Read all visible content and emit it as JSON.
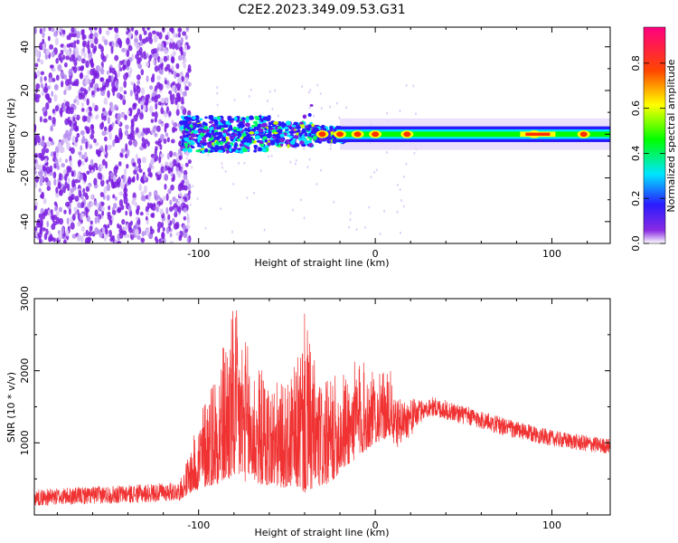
{
  "figure": {
    "title": "C2E2.2023.349.09.53.G31"
  },
  "colorbar": {
    "label": "Normalized spectral amplitude",
    "ticks": [
      "0.0",
      "0.2",
      "0.4",
      "0.6",
      "0.8"
    ],
    "range": [
      0,
      0.96
    ]
  },
  "chart_data": [
    {
      "type": "heatmap",
      "xlabel": "Height of straight line (km)",
      "ylabel": "Frequency (Hz)",
      "xlim": [
        -193,
        133
      ],
      "ylim": [
        -50,
        49
      ],
      "xticks": [
        -100,
        0,
        100
      ],
      "xtick_labels": [
        "-100",
        "0",
        "100"
      ],
      "yticks": [
        -40,
        -20,
        0,
        20,
        40
      ],
      "ytick_labels": [
        "-40",
        "-20",
        "0",
        "20",
        "40"
      ],
      "grid": false,
      "colormap": "rainbow",
      "features": {
        "noise_region_x": [
          -193,
          -107
        ],
        "signal_line_frequency": 0,
        "signal_bandwidth_hz": 8,
        "signal_color_peaks_x": [
          -30,
          -20,
          -10,
          0,
          18,
          90,
          118
        ]
      }
    },
    {
      "type": "line",
      "xlabel": "Height of straight line (km)",
      "ylabel": "SNR (10 * v/v)",
      "xlim": [
        -193,
        133
      ],
      "ylim": [
        0,
        3000
      ],
      "xticks": [
        -100,
        0,
        100
      ],
      "xtick_labels": [
        "-100",
        "0",
        "100"
      ],
      "yticks": [
        1000,
        2000,
        3000
      ],
      "ytick_labels": [
        "1000",
        "2000",
        "3000"
      ],
      "grid": false,
      "series_color": "#f03232",
      "envelope": {
        "x": [
          -193,
          -160,
          -130,
          -110,
          -105,
          -95,
          -85,
          -80,
          -70,
          -60,
          -50,
          -45,
          -40,
          -35,
          -30,
          -25,
          -20,
          -15,
          -10,
          -5,
          0,
          10,
          20,
          28,
          40,
          60,
          80,
          100,
          120,
          133
        ],
        "base": [
          150,
          180,
          200,
          230,
          300,
          400,
          450,
          500,
          450,
          400,
          380,
          400,
          300,
          350,
          400,
          450,
          600,
          700,
          800,
          900,
          1000,
          1100,
          1250,
          1420,
          1350,
          1220,
          1080,
          980,
          900,
          870
        ],
        "peak": [
          400,
          450,
          480,
          520,
          900,
          1800,
          2500,
          2950,
          2200,
          1900,
          1800,
          2100,
          2800,
          2200,
          1800,
          1900,
          2000,
          2000,
          2200,
          2100,
          1950,
          2000,
          1900,
          1720,
          1650,
          1500,
          1350,
          1220,
          1150,
          1100
        ]
      }
    }
  ]
}
